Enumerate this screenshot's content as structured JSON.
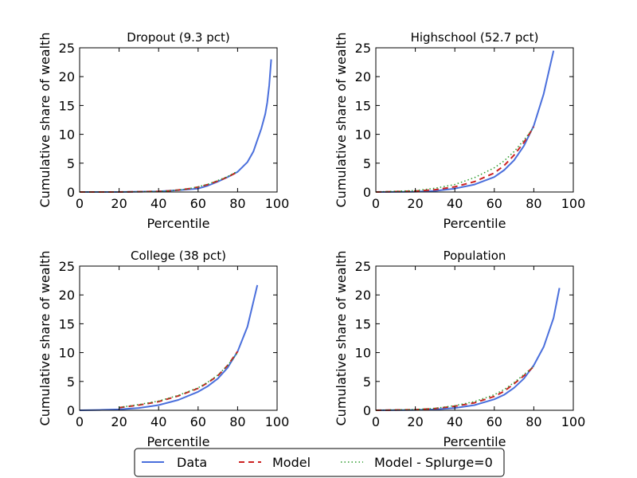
{
  "figure": {
    "legend": {
      "placement": "bottom-center",
      "entries": [
        {
          "label": "Data",
          "color": "#4a6fdc",
          "style": "solid"
        },
        {
          "label": "Model",
          "color": "#cc2222",
          "style": "dashed"
        },
        {
          "label": "Model - Splurge=0",
          "color": "#2a9a2a",
          "style": "dotted"
        }
      ]
    }
  },
  "chart_data": [
    {
      "type": "line",
      "title": "Dropout (9.3 pct)",
      "xlabel": "Percentile",
      "ylabel": "Cumulative share of wealth",
      "xlim": [
        0,
        100
      ],
      "ylim": [
        0,
        25
      ],
      "xticks": [
        0,
        20,
        40,
        60,
        80,
        100
      ],
      "yticks": [
        0,
        5,
        10,
        15,
        20,
        25
      ],
      "grid": false,
      "series": [
        {
          "name": "Data",
          "color": "#4a6fdc",
          "style": "solid",
          "x": [
            0,
            20,
            40,
            50,
            60,
            65,
            70,
            75,
            80,
            85,
            88,
            90,
            92,
            94,
            95,
            96,
            97
          ],
          "y": [
            0,
            0,
            0.1,
            0.3,
            0.6,
            1.1,
            1.8,
            2.6,
            3.5,
            5.2,
            7.0,
            9.0,
            11.0,
            13.5,
            15.5,
            18.5,
            23.0
          ]
        },
        {
          "name": "Model",
          "color": "#cc2222",
          "style": "dashed",
          "x": [
            0,
            20,
            40,
            45,
            50,
            55,
            60,
            65,
            70,
            75,
            80
          ],
          "y": [
            0,
            0,
            0.1,
            0.2,
            0.35,
            0.55,
            0.85,
            1.3,
            1.9,
            2.6,
            3.5
          ]
        },
        {
          "name": "Model - Splurge=0",
          "color": "#2a9a2a",
          "style": "dotted",
          "x": [
            0,
            20,
            40,
            45,
            50,
            55,
            60,
            65,
            70,
            75,
            80
          ],
          "y": [
            0,
            0,
            0.1,
            0.2,
            0.35,
            0.55,
            0.9,
            1.35,
            2.0,
            2.7,
            3.6
          ]
        }
      ]
    },
    {
      "type": "line",
      "title": "Highschool (52.7 pct)",
      "xlabel": "Percentile",
      "ylabel": "Cumulative share of wealth",
      "xlim": [
        0,
        100
      ],
      "ylim": [
        0,
        25
      ],
      "xticks": [
        0,
        20,
        40,
        60,
        80,
        100
      ],
      "yticks": [
        0,
        5,
        10,
        15,
        20,
        25
      ],
      "grid": false,
      "series": [
        {
          "name": "Data",
          "color": "#4a6fdc",
          "style": "solid",
          "x": [
            0,
            20,
            30,
            40,
            50,
            60,
            65,
            70,
            75,
            80,
            85,
            90
          ],
          "y": [
            0,
            0.05,
            0.2,
            0.6,
            1.3,
            2.6,
            3.8,
            5.5,
            8.0,
            11.5,
            17.0,
            24.5
          ]
        },
        {
          "name": "Model",
          "color": "#cc2222",
          "style": "dashed",
          "x": [
            0,
            20,
            30,
            40,
            50,
            60,
            65,
            70,
            75,
            80
          ],
          "y": [
            0,
            0.15,
            0.4,
            0.9,
            1.8,
            3.3,
            4.6,
            6.4,
            8.6,
            11.3
          ]
        },
        {
          "name": "Model - Splurge=0",
          "color": "#2a9a2a",
          "style": "dotted",
          "x": [
            0,
            20,
            30,
            40,
            50,
            60,
            65,
            70,
            75,
            80
          ],
          "y": [
            0,
            0.25,
            0.65,
            1.3,
            2.5,
            4.2,
            5.4,
            7.0,
            9.0,
            11.2
          ]
        }
      ]
    },
    {
      "type": "line",
      "title": "College (38 pct)",
      "xlabel": "Percentile",
      "ylabel": "Cumulative share of wealth",
      "xlim": [
        0,
        100
      ],
      "ylim": [
        0,
        25
      ],
      "xticks": [
        0,
        20,
        40,
        60,
        80,
        100
      ],
      "yticks": [
        0,
        5,
        10,
        15,
        20,
        25
      ],
      "grid": false,
      "series": [
        {
          "name": "Data",
          "color": "#4a6fdc",
          "style": "solid",
          "x": [
            0,
            10,
            20,
            30,
            40,
            50,
            60,
            65,
            70,
            75,
            80,
            85,
            90
          ],
          "y": [
            0,
            0.05,
            0.15,
            0.4,
            0.9,
            1.8,
            3.2,
            4.2,
            5.5,
            7.4,
            10.2,
            14.5,
            21.7
          ]
        },
        {
          "name": "Model",
          "color": "#cc2222",
          "style": "dashed",
          "x": [
            20,
            30,
            40,
            50,
            60,
            65,
            70,
            75,
            80
          ],
          "y": [
            0.45,
            0.9,
            1.5,
            2.5,
            3.8,
            4.8,
            6.0,
            7.8,
            10.2
          ]
        },
        {
          "name": "Model - Splurge=0",
          "color": "#2a9a2a",
          "style": "dotted",
          "x": [
            20,
            30,
            40,
            50,
            60,
            65,
            70,
            75,
            80
          ],
          "y": [
            0.5,
            1.0,
            1.6,
            2.6,
            3.9,
            4.9,
            6.1,
            7.8,
            10.0
          ]
        }
      ]
    },
    {
      "type": "line",
      "title": "Population",
      "xlabel": "Percentile",
      "ylabel": "Cumulative share of wealth",
      "xlim": [
        0,
        100
      ],
      "ylim": [
        0,
        25
      ],
      "xticks": [
        0,
        20,
        40,
        60,
        80,
        100
      ],
      "yticks": [
        0,
        5,
        10,
        15,
        20,
        25
      ],
      "grid": false,
      "series": [
        {
          "name": "Data",
          "color": "#4a6fdc",
          "style": "solid",
          "x": [
            0,
            20,
            30,
            40,
            50,
            60,
            65,
            70,
            75,
            80,
            85,
            90,
            93
          ],
          "y": [
            0,
            0.05,
            0.15,
            0.4,
            0.9,
            1.9,
            2.7,
            3.9,
            5.5,
            7.8,
            11.0,
            16.0,
            21.2
          ]
        },
        {
          "name": "Model",
          "color": "#cc2222",
          "style": "dashed",
          "x": [
            0,
            20,
            30,
            40,
            50,
            60,
            65,
            70,
            75,
            80
          ],
          "y": [
            0,
            0.1,
            0.3,
            0.7,
            1.3,
            2.4,
            3.3,
            4.6,
            6.0,
            7.6
          ]
        },
        {
          "name": "Model - Splurge=0",
          "color": "#2a9a2a",
          "style": "dotted",
          "x": [
            0,
            20,
            30,
            40,
            50,
            60,
            65,
            70,
            75,
            80
          ],
          "y": [
            0,
            0.12,
            0.35,
            0.8,
            1.5,
            2.7,
            3.6,
            4.8,
            6.2,
            7.6
          ]
        }
      ]
    }
  ]
}
